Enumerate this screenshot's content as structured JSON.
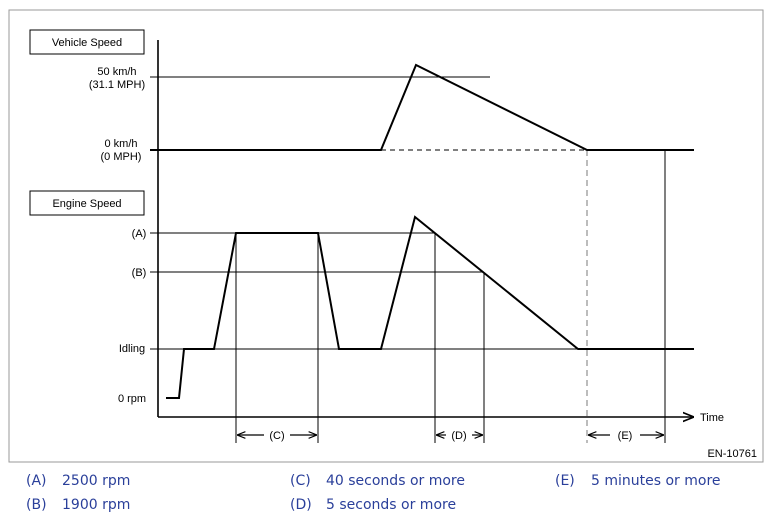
{
  "figure_id": "EN-10761",
  "vehicle_speed": {
    "title": "Vehicle Speed",
    "level_high": [
      "50 km/h",
      "(31.1 MPH)"
    ],
    "level_zero": [
      "0 km/h",
      "(0 MPH)"
    ]
  },
  "engine_speed": {
    "title": "Engine Speed",
    "level_a": "(A)",
    "level_b": "(B)",
    "level_idle": "Idling",
    "level_zero": "0 rpm"
  },
  "time_label": "Time",
  "intervals": {
    "c": "(C)",
    "d": "(D)",
    "e": "(E)"
  },
  "legend": [
    {
      "code": "(A)",
      "text": "2500 rpm"
    },
    {
      "code": "(B)",
      "text": "1900 rpm"
    },
    {
      "code": "(C)",
      "text": "40 seconds or more"
    },
    {
      "code": "(D)",
      "text": "5 seconds or more"
    },
    {
      "code": "(E)",
      "text": "5 minutes or more"
    }
  ],
  "colors": {
    "legend_text": "#2a3f9a",
    "frame": "#9a9a9a",
    "dashed_grey": "#a0a0a0"
  }
}
